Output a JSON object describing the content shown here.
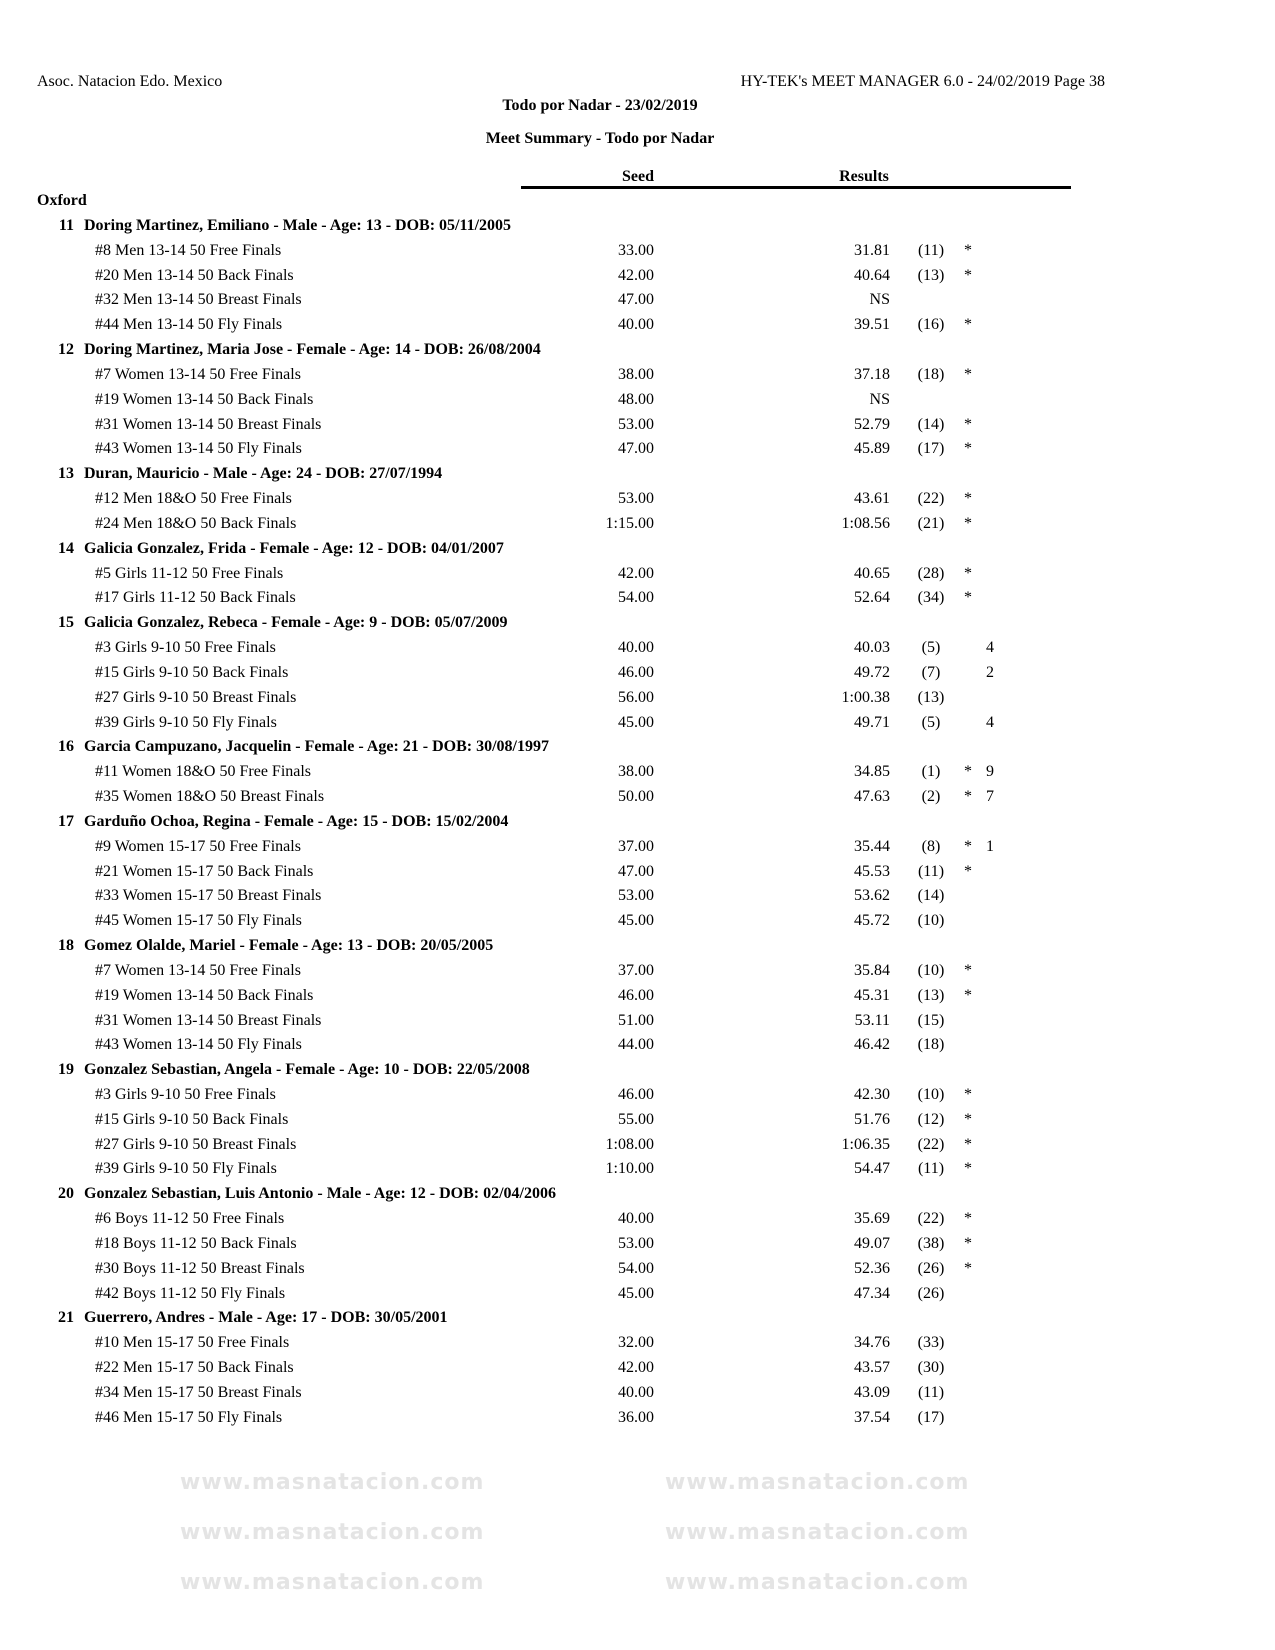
{
  "header": {
    "organization": "Asoc. Natacion Edo. Mexico",
    "software": "HY-TEK's MEET MANAGER 6.0 - 24/02/2019  Page 38",
    "title": "Todo por Nadar - 23/02/2019",
    "subtitle": "Meet Summary - Todo por Nadar"
  },
  "columns": {
    "seed": "Seed",
    "results": "Results"
  },
  "team": "Oxford",
  "watermark": "www.masnatacion.com",
  "swimmers": [
    {
      "num": "11",
      "header": "Doring Martinez, Emiliano - Male - Age: 13 - DOB: 05/11/2005",
      "events": [
        {
          "event": "#8 Men 13-14 50 Free Finals",
          "seed": "33.00",
          "result": "31.81",
          "place": "(11)",
          "star": "*",
          "points": ""
        },
        {
          "event": "#20 Men 13-14 50 Back Finals",
          "seed": "42.00",
          "result": "40.64",
          "place": "(13)",
          "star": "*",
          "points": ""
        },
        {
          "event": "#32 Men 13-14 50 Breast Finals",
          "seed": "47.00",
          "result": "NS",
          "place": "",
          "star": "",
          "points": ""
        },
        {
          "event": "#44 Men 13-14 50 Fly Finals",
          "seed": "40.00",
          "result": "39.51",
          "place": "(16)",
          "star": "*",
          "points": ""
        }
      ]
    },
    {
      "num": "12",
      "header": "Doring Martinez, Maria Jose - Female - Age: 14 - DOB: 26/08/2004",
      "events": [
        {
          "event": "#7 Women 13-14 50 Free Finals",
          "seed": "38.00",
          "result": "37.18",
          "place": "(18)",
          "star": "*",
          "points": ""
        },
        {
          "event": "#19 Women 13-14 50 Back Finals",
          "seed": "48.00",
          "result": "NS",
          "place": "",
          "star": "",
          "points": ""
        },
        {
          "event": "#31 Women 13-14 50 Breast Finals",
          "seed": "53.00",
          "result": "52.79",
          "place": "(14)",
          "star": "*",
          "points": ""
        },
        {
          "event": "#43 Women 13-14 50 Fly Finals",
          "seed": "47.00",
          "result": "45.89",
          "place": "(17)",
          "star": "*",
          "points": ""
        }
      ]
    },
    {
      "num": "13",
      "header": "Duran, Mauricio - Male - Age: 24 - DOB: 27/07/1994",
      "events": [
        {
          "event": "#12 Men 18&O 50 Free Finals",
          "seed": "53.00",
          "result": "43.61",
          "place": "(22)",
          "star": "*",
          "points": ""
        },
        {
          "event": "#24 Men 18&O 50 Back Finals",
          "seed": "1:15.00",
          "result": "1:08.56",
          "place": "(21)",
          "star": "*",
          "points": ""
        }
      ]
    },
    {
      "num": "14",
      "header": "Galicia Gonzalez, Frida - Female - Age: 12 - DOB: 04/01/2007",
      "events": [
        {
          "event": "#5 Girls 11-12 50 Free Finals",
          "seed": "42.00",
          "result": "40.65",
          "place": "(28)",
          "star": "*",
          "points": ""
        },
        {
          "event": "#17 Girls 11-12 50 Back Finals",
          "seed": "54.00",
          "result": "52.64",
          "place": "(34)",
          "star": "*",
          "points": ""
        }
      ]
    },
    {
      "num": "15",
      "header": "Galicia Gonzalez, Rebeca - Female - Age: 9 - DOB: 05/07/2009",
      "events": [
        {
          "event": "#3 Girls 9-10 50 Free Finals",
          "seed": "40.00",
          "result": "40.03",
          "place": "(5)",
          "star": "",
          "points": "4"
        },
        {
          "event": "#15 Girls 9-10 50 Back Finals",
          "seed": "46.00",
          "result": "49.72",
          "place": "(7)",
          "star": "",
          "points": "2"
        },
        {
          "event": "#27 Girls 9-10 50 Breast Finals",
          "seed": "56.00",
          "result": "1:00.38",
          "place": "(13)",
          "star": "",
          "points": ""
        },
        {
          "event": "#39 Girls 9-10 50 Fly Finals",
          "seed": "45.00",
          "result": "49.71",
          "place": "(5)",
          "star": "",
          "points": "4"
        }
      ]
    },
    {
      "num": "16",
      "header": "Garcia Campuzano, Jacquelin - Female - Age: 21 - DOB: 30/08/1997",
      "events": [
        {
          "event": "#11 Women 18&O 50 Free Finals",
          "seed": "38.00",
          "result": "34.85",
          "place": "(1)",
          "star": "*",
          "points": "9"
        },
        {
          "event": "#35 Women 18&O 50 Breast Finals",
          "seed": "50.00",
          "result": "47.63",
          "place": "(2)",
          "star": "*",
          "points": "7"
        }
      ]
    },
    {
      "num": "17",
      "header": "Garduño Ochoa, Regina - Female - Age: 15 - DOB: 15/02/2004",
      "events": [
        {
          "event": "#9 Women 15-17 50 Free Finals",
          "seed": "37.00",
          "result": "35.44",
          "place": "(8)",
          "star": "*",
          "points": "1"
        },
        {
          "event": "#21 Women 15-17 50 Back Finals",
          "seed": "47.00",
          "result": "45.53",
          "place": "(11)",
          "star": "*",
          "points": ""
        },
        {
          "event": "#33 Women 15-17 50 Breast Finals",
          "seed": "53.00",
          "result": "53.62",
          "place": "(14)",
          "star": "",
          "points": ""
        },
        {
          "event": "#45 Women 15-17 50 Fly Finals",
          "seed": "45.00",
          "result": "45.72",
          "place": "(10)",
          "star": "",
          "points": ""
        }
      ]
    },
    {
      "num": "18",
      "header": "Gomez Olalde, Mariel - Female - Age: 13 - DOB: 20/05/2005",
      "events": [
        {
          "event": "#7 Women 13-14 50 Free Finals",
          "seed": "37.00",
          "result": "35.84",
          "place": "(10)",
          "star": "*",
          "points": ""
        },
        {
          "event": "#19 Women 13-14 50 Back Finals",
          "seed": "46.00",
          "result": "45.31",
          "place": "(13)",
          "star": "*",
          "points": ""
        },
        {
          "event": "#31 Women 13-14 50 Breast Finals",
          "seed": "51.00",
          "result": "53.11",
          "place": "(15)",
          "star": "",
          "points": ""
        },
        {
          "event": "#43 Women 13-14 50 Fly Finals",
          "seed": "44.00",
          "result": "46.42",
          "place": "(18)",
          "star": "",
          "points": ""
        }
      ]
    },
    {
      "num": "19",
      "header": "Gonzalez Sebastian, Angela - Female - Age: 10 - DOB: 22/05/2008",
      "events": [
        {
          "event": "#3 Girls 9-10 50 Free Finals",
          "seed": "46.00",
          "result": "42.30",
          "place": "(10)",
          "star": "*",
          "points": ""
        },
        {
          "event": "#15 Girls 9-10 50 Back Finals",
          "seed": "55.00",
          "result": "51.76",
          "place": "(12)",
          "star": "*",
          "points": ""
        },
        {
          "event": "#27 Girls 9-10 50 Breast Finals",
          "seed": "1:08.00",
          "result": "1:06.35",
          "place": "(22)",
          "star": "*",
          "points": ""
        },
        {
          "event": "#39 Girls 9-10 50 Fly Finals",
          "seed": "1:10.00",
          "result": "54.47",
          "place": "(11)",
          "star": "*",
          "points": ""
        }
      ]
    },
    {
      "num": "20",
      "header": "Gonzalez Sebastian, Luis Antonio - Male - Age: 12 - DOB: 02/04/2006",
      "events": [
        {
          "event": "#6 Boys 11-12 50 Free Finals",
          "seed": "40.00",
          "result": "35.69",
          "place": "(22)",
          "star": "*",
          "points": ""
        },
        {
          "event": "#18 Boys 11-12 50 Back Finals",
          "seed": "53.00",
          "result": "49.07",
          "place": "(38)",
          "star": "*",
          "points": ""
        },
        {
          "event": "#30 Boys 11-12 50 Breast Finals",
          "seed": "54.00",
          "result": "52.36",
          "place": "(26)",
          "star": "*",
          "points": ""
        },
        {
          "event": "#42 Boys 11-12 50 Fly Finals",
          "seed": "45.00",
          "result": "47.34",
          "place": "(26)",
          "star": "",
          "points": ""
        }
      ]
    },
    {
      "num": "21",
      "header": "Guerrero, Andres - Male - Age: 17 - DOB: 30/05/2001",
      "events": [
        {
          "event": "#10 Men 15-17 50 Free Finals",
          "seed": "32.00",
          "result": "34.76",
          "place": "(33)",
          "star": "",
          "points": ""
        },
        {
          "event": "#22 Men 15-17 50 Back Finals",
          "seed": "42.00",
          "result": "43.57",
          "place": "(30)",
          "star": "",
          "points": ""
        },
        {
          "event": "#34 Men 15-17 50 Breast Finals",
          "seed": "40.00",
          "result": "43.09",
          "place": "(11)",
          "star": "",
          "points": ""
        },
        {
          "event": "#46 Men 15-17 50 Fly Finals",
          "seed": "36.00",
          "result": "37.54",
          "place": "(17)",
          "star": "",
          "points": ""
        }
      ]
    }
  ]
}
